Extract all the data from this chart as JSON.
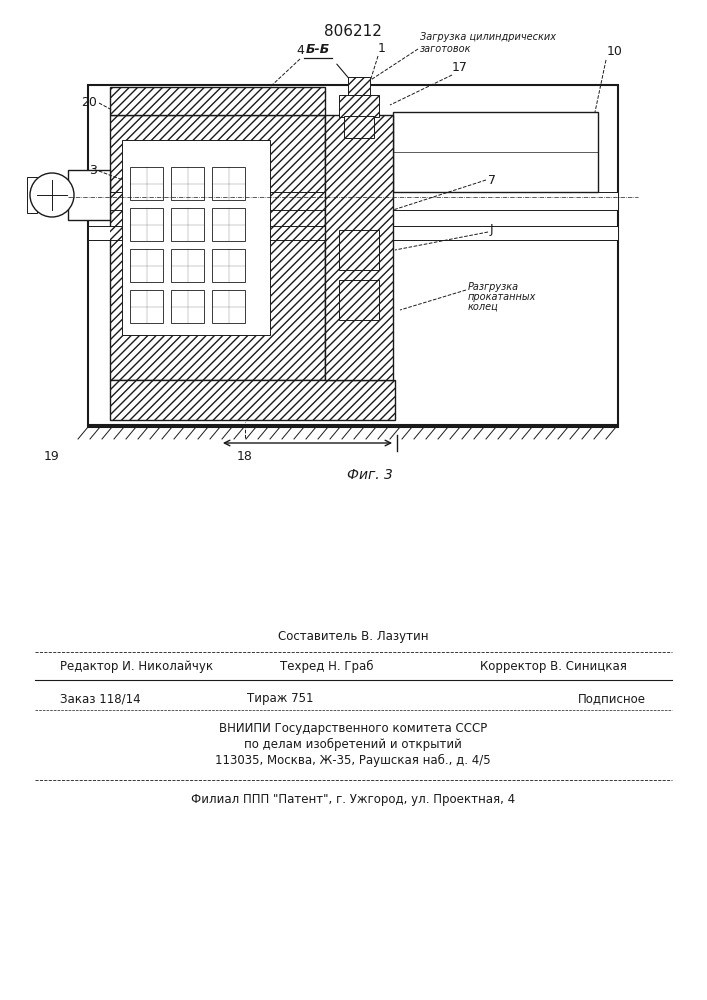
{
  "title": "806212",
  "fig_label": "Фиг. 3",
  "background_color": "#ffffff",
  "line_color": "#1a1a1a",
  "label_20": "20",
  "label_3": "3",
  "label_4": "4",
  "label_7": "7",
  "label_J": "J",
  "label_19": "19",
  "label_18": "18",
  "label_BB": "Б-Б",
  "label_1": "1",
  "label_10": "10",
  "label_17": "17",
  "annotation_load_1": "Загрузка цилиндрических",
  "annotation_load_2": "заготовок",
  "annotation_unload_1": "Разгрузка",
  "annotation_unload_2": "прокатанных",
  "annotation_unload_3": "колец",
  "footer_line1": "Составитель В. Лазутин",
  "footer_line2_left": "Редактор И. Николайчук",
  "footer_line2_mid": "Техред Н. Граб",
  "footer_line2_right": "Корректор В. Синицкая",
  "footer_line3_left": "Заказ 118/14",
  "footer_line3_mid": "Тираж 751",
  "footer_line3_right": "Подписное",
  "footer_line4": "ВНИИПИ Государственного комитета СССР",
  "footer_line5": "по делам изобретений и открытий",
  "footer_line6": "113035, Москва, Ж-35, Раушская наб., д. 4/5",
  "footer_line7": "Филиал ППП \"Патент\", г. Ужгород, ул. Проектная, 4"
}
